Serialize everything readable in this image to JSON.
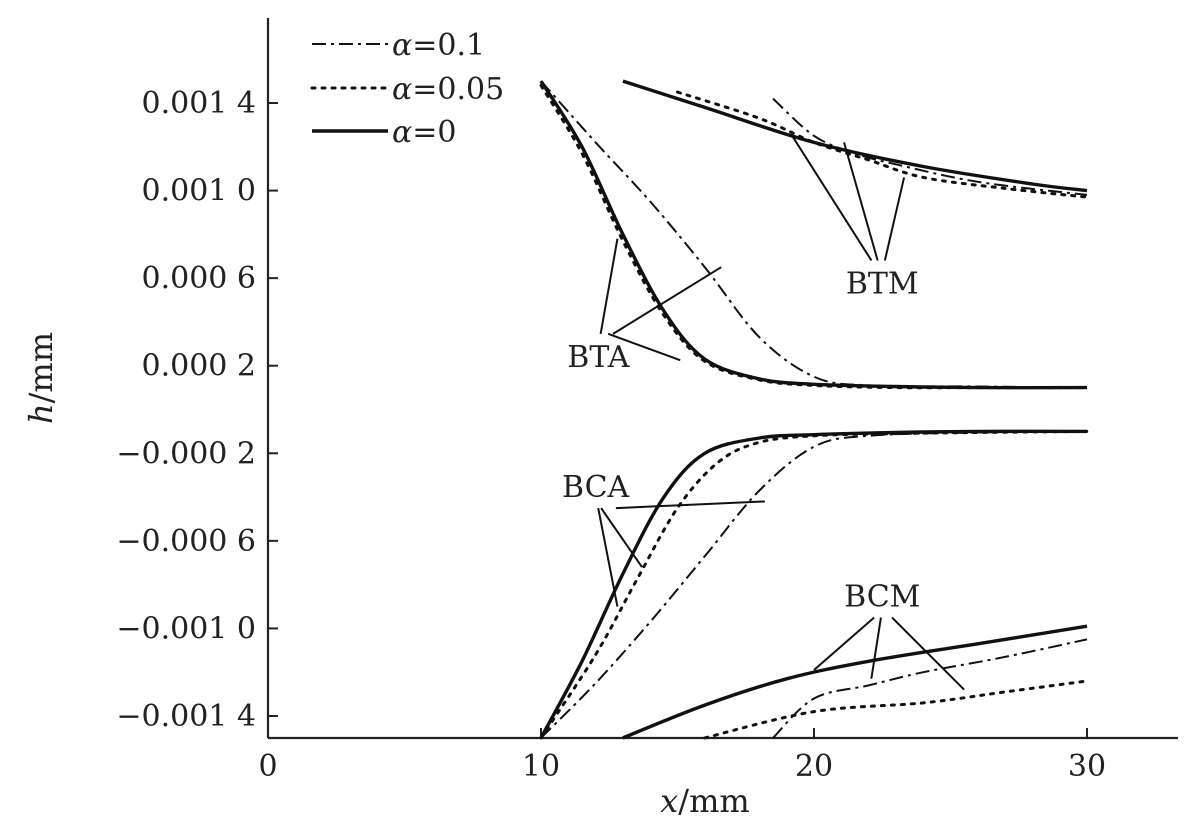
{
  "chart_data": {
    "type": "line",
    "title": "",
    "xlabel": {
      "symbol": "x",
      "unit": "/mm"
    },
    "ylabel": {
      "symbol": "h",
      "unit": "/mm"
    },
    "xlim": [
      0,
      33
    ],
    "ylim": [
      -0.0015,
      0.0017
    ],
    "xticks": [
      0,
      10,
      20,
      30
    ],
    "xtick_labels": [
      "0",
      "10",
      "20",
      "30"
    ],
    "yticks": [
      0.0014,
      0.001,
      0.0006,
      0.0002,
      -0.0002,
      -0.0006,
      -0.001,
      -0.0014
    ],
    "ytick_labels": [
      "0.001 4",
      "0.001 0",
      "0.000 6",
      "0.000 2",
      "−0.000 2",
      "−0.000 6",
      "−0.001 0",
      "−0.001 4"
    ],
    "grid": false,
    "legend": {
      "placement": "top-left",
      "entries": [
        {
          "symbol": "α",
          "text": "=0.1",
          "style": "dashdot"
        },
        {
          "symbol": "α",
          "text": "=0.05",
          "style": "dotted"
        },
        {
          "symbol": "α",
          "text": "=0",
          "style": "solid"
        }
      ]
    },
    "series": [
      {
        "group": "BTM",
        "alpha": 0,
        "style": "solid",
        "x": [
          13,
          16,
          20,
          24,
          28,
          30
        ],
        "y": [
          0.0015,
          0.00138,
          0.00122,
          0.00111,
          0.00103,
          0.001
        ]
      },
      {
        "group": "BTM",
        "alpha": 0.05,
        "style": "dotted",
        "x": [
          15,
          18,
          20,
          22,
          24,
          27,
          30
        ],
        "y": [
          0.00145,
          0.00133,
          0.00122,
          0.00114,
          0.00106,
          0.00101,
          0.00097
        ]
      },
      {
        "group": "BTM",
        "alpha": 0.1,
        "style": "dashdot",
        "x": [
          18.5,
          20,
          21.5,
          23,
          26,
          30
        ],
        "y": [
          0.00142,
          0.00125,
          0.00117,
          0.00112,
          0.00104,
          0.00098
        ]
      },
      {
        "group": "BTA",
        "alpha": 0,
        "style": "solid",
        "x": [
          10,
          11.5,
          13,
          14.5,
          16,
          18,
          20,
          23,
          26,
          30
        ],
        "y": [
          0.0015,
          0.0012,
          0.0008,
          0.00045,
          0.00023,
          0.00014,
          0.000115,
          0.000105,
          0.0001,
          0.0001
        ]
      },
      {
        "group": "BTA",
        "alpha": 0.05,
        "style": "dotted",
        "x": [
          10,
          11.5,
          13,
          14.5,
          16,
          18,
          20,
          23,
          26,
          30
        ],
        "y": [
          0.00148,
          0.00117,
          0.00077,
          0.00043,
          0.00022,
          0.000135,
          0.00011,
          0.0001,
          0.0001,
          0.0001
        ]
      },
      {
        "group": "BTA",
        "alpha": 0.1,
        "style": "dashdot",
        "x": [
          10,
          12,
          14,
          16,
          18,
          20,
          22,
          26,
          30
        ],
        "y": [
          0.0015,
          0.00122,
          0.00095,
          0.00065,
          0.00033,
          0.00015,
          0.00011,
          0.000105,
          0.0001
        ]
      },
      {
        "group": "BCA",
        "alpha": 0,
        "style": "solid",
        "x": [
          10,
          11.5,
          13,
          14.5,
          16,
          18,
          20,
          23,
          26,
          30
        ],
        "y": [
          -0.0015,
          -0.00115,
          -0.00075,
          -0.0004,
          -0.0002,
          -0.00013,
          -0.000115,
          -0.000105,
          -0.0001,
          -0.0001
        ]
      },
      {
        "group": "BCA",
        "alpha": 0.05,
        "style": "dotted",
        "x": [
          10,
          12,
          13.5,
          15,
          16.5,
          18,
          20,
          23,
          26,
          30
        ],
        "y": [
          -0.0015,
          -0.00112,
          -0.00078,
          -0.00045,
          -0.00024,
          -0.00015,
          -0.00012,
          -0.00011,
          -0.000105,
          -0.0001
        ]
      },
      {
        "group": "BCA",
        "alpha": 0.1,
        "style": "dashdot",
        "x": [
          10,
          12,
          14,
          16,
          18,
          20,
          22,
          26,
          30
        ],
        "y": [
          -0.0015,
          -0.00125,
          -0.00097,
          -0.00067,
          -0.00037,
          -0.00017,
          -0.00012,
          -0.000105,
          -0.0001
        ]
      },
      {
        "group": "BCM",
        "alpha": 0,
        "style": "solid",
        "x": [
          13,
          16,
          19,
          22,
          26,
          30
        ],
        "y": [
          -0.0015,
          -0.00135,
          -0.00123,
          -0.00115,
          -0.00107,
          -0.00099
        ]
      },
      {
        "group": "BCM",
        "alpha": 0.1,
        "style": "dashdot",
        "x": [
          18.5,
          20,
          22,
          24,
          27,
          30
        ],
        "y": [
          -0.0015,
          -0.00132,
          -0.00126,
          -0.0012,
          -0.00113,
          -0.00105
        ]
      },
      {
        "group": "BCM",
        "alpha": 0.05,
        "style": "dotted",
        "x": [
          16,
          20,
          24,
          27,
          30
        ],
        "y": [
          -0.0015,
          -0.00138,
          -0.00134,
          -0.00129,
          -0.00124
        ]
      }
    ],
    "annotations": [
      {
        "text": "BTM",
        "x": 22.5,
        "y": 0.00058,
        "targets": [
          [
            19.2,
            0.00125
          ],
          [
            21.1,
            0.00122
          ],
          [
            23.3,
            0.00106
          ]
        ]
      },
      {
        "text": "BTA",
        "x": 12.1,
        "y": 0.000245,
        "targets": [
          [
            12.8,
            0.00078
          ],
          [
            16.6,
            0.00065
          ],
          [
            15.1,
            0.000225
          ]
        ]
      },
      {
        "text": "BCA",
        "x": 12,
        "y": -0.00035,
        "targets": [
          [
            12.8,
            -0.0009
          ],
          [
            13.7,
            -0.00072
          ],
          [
            18.2,
            -0.00042
          ]
        ]
      },
      {
        "text": "BCM",
        "x": 22.5,
        "y": -0.00085,
        "targets": [
          [
            20,
            -0.00119
          ],
          [
            22.1,
            -0.00123
          ],
          [
            25.5,
            -0.00128
          ]
        ]
      }
    ]
  }
}
